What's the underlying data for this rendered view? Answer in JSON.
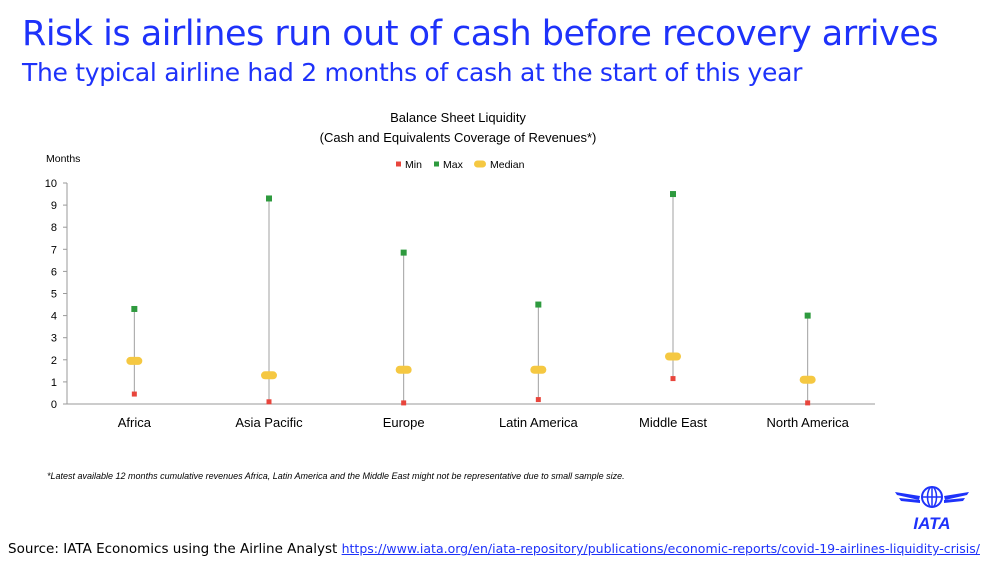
{
  "headline": "Risk is airlines run out of cash before recovery arrives",
  "subheadline": "The typical airline had 2 months of cash at the start of this year",
  "footnote": "*Latest available 12 months cumulative revenues Africa, Latin America and the Middle East might not be representative due to small sample size.",
  "source": {
    "label": "Source: IATA Economics using the Airline Analyst",
    "link_text": "https://www.iata.org/en/iata-repository/publications/economic-reports/covid-19-airlines-liquidity-crisis/"
  },
  "logo": {
    "text": "IATA",
    "icon": "globe-wings-logo"
  },
  "colors": {
    "headline": "#1e32fa",
    "min": "#e8453c",
    "max": "#2e9a3e",
    "median": "#f5c842",
    "range_line": "#a0a0a0",
    "logo": "#1e32fa"
  },
  "chart_data": {
    "type": "range-dot",
    "title": "Balance Sheet Liquidity",
    "subtitle": "(Cash and Equivalents Coverage of Revenues*)",
    "ylabel": "Months",
    "ylim": [
      0,
      10
    ],
    "yticks": [
      0,
      1,
      2,
      3,
      4,
      5,
      6,
      7,
      8,
      9,
      10
    ],
    "legend_position": "top-center",
    "categories": [
      "Africa",
      "Asia Pacific",
      "Europe",
      "Latin America",
      "Middle East",
      "North America"
    ],
    "series": [
      {
        "name": "Min",
        "values": [
          0.45,
          0.1,
          0.05,
          0.2,
          1.15,
          0.05
        ]
      },
      {
        "name": "Max",
        "values": [
          4.3,
          9.3,
          6.85,
          4.5,
          9.5,
          4.0
        ]
      },
      {
        "name": "Median",
        "values": [
          1.95,
          1.3,
          1.55,
          1.55,
          2.15,
          1.1
        ]
      }
    ]
  }
}
